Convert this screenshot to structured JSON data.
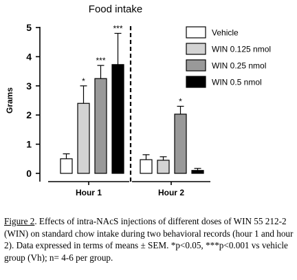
{
  "chart_data": {
    "type": "bar",
    "title": "Food intake",
    "ylabel": "Grams",
    "xlabel": "",
    "ylim": [
      0,
      5
    ],
    "yticks": [
      0,
      1,
      2,
      3,
      4,
      5
    ],
    "categories": [
      "Hour 1",
      "Hour 2"
    ],
    "series": [
      {
        "name": "Vehicle",
        "color": "#ffffff",
        "values": [
          0.5,
          0.47
        ],
        "errors": [
          0.17,
          0.17
        ],
        "sig": [
          "",
          ""
        ]
      },
      {
        "name": "WIN 0.125 nmol",
        "color": "#d3d3d3",
        "values": [
          2.4,
          0.45
        ],
        "errors": [
          0.6,
          0.12
        ],
        "sig": [
          "*",
          ""
        ]
      },
      {
        "name": "WIN 0.25 nmol",
        "color": "#999999",
        "values": [
          3.25,
          2.03
        ],
        "errors": [
          0.45,
          0.27
        ],
        "sig": [
          "***",
          "*"
        ]
      },
      {
        "name": "WIN 0.5 nmol",
        "color": "#000000",
        "values": [
          3.73,
          0.1
        ],
        "errors": [
          1.07,
          0.07
        ],
        "sig": [
          "***",
          ""
        ]
      }
    ],
    "legend": "top-right",
    "divider": "dashed line between Hour 1 and Hour 2"
  },
  "caption": {
    "label": "Figure 2",
    "text": ". Effects of intra-NAcS injections of different doses of WIN 55 212-2 (WIN) on standard chow intake during two behavioral records (hour 1 and hour 2). Data expressed in terms of means ± SEM. *p<0.05, ***p<0.001 vs vehicle group (Vh); n= 4-6 per group."
  }
}
